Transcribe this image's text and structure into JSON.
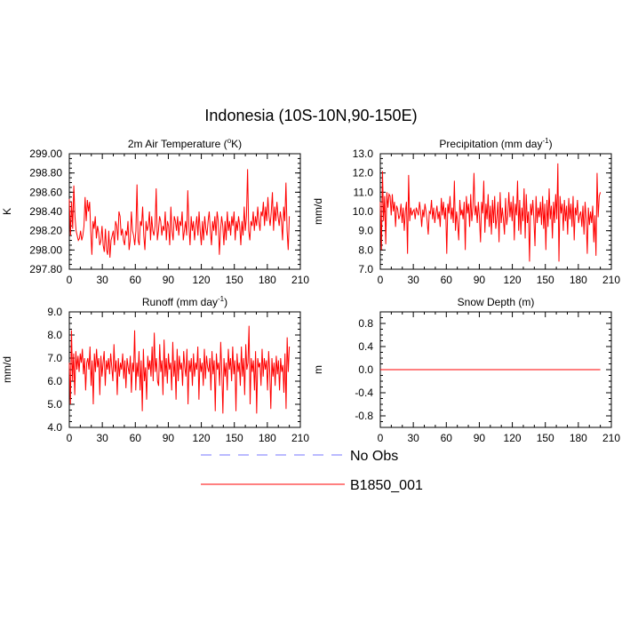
{
  "title": "Indonesia (10S-10N,90-150E)",
  "legend": {
    "position": "bottom-center",
    "entries": [
      {
        "label": "No Obs",
        "color": "#7777ff",
        "dashed": true
      },
      {
        "label": "B1850_001",
        "color": "#ff0000",
        "dashed": false
      }
    ]
  },
  "chart_data": [
    {
      "type": "line",
      "title_main": "2m Air Temperature (",
      "title_sup": "o",
      "title_end": "K)",
      "xlabel": "",
      "ylabel": "K",
      "xlim": [
        0,
        210
      ],
      "ylim": [
        297.8,
        299.0
      ],
      "xticks": [
        "0",
        "30",
        "60",
        "90",
        "120",
        "150",
        "180",
        "210"
      ],
      "yticks": [
        "297.80",
        "298.00",
        "298.20",
        "298.40",
        "298.60",
        "298.80",
        "299.00"
      ],
      "series": [
        {
          "name": "B1850_001",
          "color": "#ff0000",
          "values": [
            298.53,
            298.15,
            298.5,
            298.22,
            298.67,
            298.35,
            298.2,
            298.15,
            298.1,
            298.12,
            298.2,
            298.1,
            298.15,
            298.25,
            298.55,
            298.3,
            298.52,
            298.4,
            298.5,
            298.2,
            297.95,
            298.3,
            298.22,
            298.35,
            298.12,
            298.25,
            298.18,
            298.05,
            298.1,
            298.25,
            298.05,
            297.98,
            298.22,
            298.0,
            297.95,
            298.2,
            297.92,
            298.1,
            298.15,
            298.2,
            298.05,
            298.3,
            298.25,
            298.1,
            298.4,
            298.35,
            298.15,
            298.22,
            298.1,
            298.05,
            298.2,
            298.15,
            298.3,
            298.0,
            298.1,
            298.4,
            298.2,
            298.15,
            298.05,
            298.2,
            298.68,
            298.1,
            298.05,
            298.3,
            298.25,
            298.45,
            298.15,
            298.0,
            298.3,
            298.2,
            298.25,
            298.4,
            298.1,
            298.35,
            298.2,
            298.15,
            298.25,
            298.64,
            298.1,
            298.2,
            298.35,
            298.3,
            298.15,
            298.25,
            298.2,
            298.4,
            298.1,
            298.3,
            298.25,
            298.05,
            298.45,
            298.2,
            298.1,
            298.35,
            298.3,
            298.2,
            298.35,
            298.15,
            298.3,
            298.25,
            298.4,
            298.1,
            298.2,
            298.3,
            298.15,
            298.62,
            298.25,
            298.05,
            298.35,
            298.2,
            298.3,
            298.1,
            298.25,
            298.35,
            298.15,
            298.4,
            298.2,
            298.05,
            298.3,
            298.1,
            298.35,
            298.22,
            298.15,
            298.3,
            298.4,
            298.2,
            298.05,
            298.3,
            298.2,
            298.35,
            298.15,
            298.4,
            298.3,
            297.95,
            298.2,
            298.35,
            298.25,
            298.05,
            298.3,
            298.1,
            298.4,
            298.2,
            298.3,
            298.15,
            298.35,
            298.25,
            298.4,
            298.1,
            298.3,
            298.2,
            298.35,
            298.25,
            298.05,
            298.3,
            298.15,
            298.45,
            298.2,
            298.35,
            298.84,
            298.2,
            298.1,
            298.3,
            298.25,
            298.4,
            298.2,
            298.35,
            298.25,
            298.45,
            298.3,
            298.2,
            298.4,
            298.35,
            298.5,
            298.25,
            298.45,
            298.3,
            298.55,
            298.35,
            298.25,
            298.4,
            298.6,
            298.2,
            298.45,
            298.3,
            298.5,
            298.35,
            298.25,
            298.4,
            298.3,
            298.1,
            298.45,
            298.3,
            298.7,
            298.2,
            298.0,
            298.35
          ]
        }
      ]
    },
    {
      "type": "line",
      "title_main": "Precipitation (mm day",
      "title_sup": "-1",
      "title_end": ")",
      "xlabel": "",
      "ylabel": "mm/d",
      "xlim": [
        0,
        210
      ],
      "ylim": [
        7.0,
        13.0
      ],
      "xticks": [
        "0",
        "30",
        "60",
        "90",
        "120",
        "150",
        "180",
        "210"
      ],
      "yticks": [
        "7.0",
        "8.0",
        "9.0",
        "10.0",
        "11.0",
        "12.0",
        "13.0"
      ],
      "series": [
        {
          "name": "B1850_001",
          "color": "#ff0000",
          "values": [
            10.5,
            8.0,
            12.1,
            9.5,
            10.8,
            8.3,
            11.0,
            10.2,
            10.9,
            10.8,
            9.8,
            10.9,
            10.0,
            10.5,
            9.2,
            10.3,
            10.1,
            9.6,
            9.8,
            10.4,
            9.4,
            10.2,
            9.0,
            10.0,
            10.5,
            7.8,
            11.9,
            9.5,
            10.2,
            9.8,
            10.0,
            10.1,
            9.6,
            10.2,
            10.0,
            9.8,
            10.5,
            10.0,
            9.2,
            10.1,
            9.7,
            10.4,
            10.0,
            9.5,
            8.8,
            10.0,
            9.9,
            10.6,
            9.6,
            10.2,
            9.4,
            9.9,
            10.3,
            9.6,
            10.0,
            9.2,
            10.7,
            9.8,
            10.5,
            9.6,
            10.2,
            7.8,
            10.4,
            9.9,
            10.8,
            9.6,
            10.2,
            9.4,
            11.6,
            9.0,
            10.0,
            9.4,
            8.5,
            10.6,
            9.8,
            10.1,
            9.6,
            10.5,
            8.0,
            10.8,
            9.9,
            10.4,
            9.2,
            10.9,
            9.5,
            10.2,
            12.0,
            9.8,
            10.3,
            9.4,
            10.5,
            9.7,
            8.4,
            10.5,
            9.9,
            11.6,
            8.9,
            10.4,
            9.6,
            10.9,
            9.2,
            10.3,
            8.8,
            10.6,
            9.4,
            10.8,
            9.1,
            9.7,
            10.5,
            8.4,
            11.0,
            9.4,
            10.2,
            9.6,
            8.8,
            10.7,
            9.3,
            9.8,
            11.0,
            9.7,
            10.5,
            9.5,
            10.8,
            8.5,
            10.4,
            9.8,
            11.6,
            9.0,
            10.6,
            8.8,
            10.2,
            9.5,
            11.2,
            8.6,
            10.9,
            9.4,
            10.0,
            7.4,
            10.4,
            9.8,
            10.6,
            9.6,
            8.2,
            10.8,
            9.4,
            10.2,
            9.7,
            10.5,
            9.3,
            10.8,
            9.1,
            10.4,
            8.0,
            10.6,
            9.2,
            11.2,
            9.6,
            10.3,
            8.6,
            10.5,
            9.4,
            10.9,
            9.6,
            12.5,
            7.4,
            10.8,
            9.9,
            10.4,
            9.0,
            10.6,
            9.5,
            10.3,
            8.8,
            10.7,
            9.6,
            10.4,
            9.2,
            10.8,
            8.5,
            10.2,
            9.8,
            10.6,
            9.4,
            9.8,
            10.0,
            9.2,
            10.3,
            8.8,
            10.5,
            9.6,
            7.8,
            10.2,
            9.3,
            10.0,
            9.4,
            10.3,
            8.4,
            9.8,
            7.7,
            12.0,
            9.7,
            10.8,
            11.0
          ]
        }
      ]
    },
    {
      "type": "line",
      "title_main": "Runoff (mm day",
      "title_sup": "-1",
      "title_end": ")",
      "xlabel": "",
      "ylabel": "mm/d",
      "xlim": [
        0,
        210
      ],
      "ylim": [
        4.0,
        9.0
      ],
      "xticks": [
        "0",
        "30",
        "60",
        "90",
        "120",
        "150",
        "180",
        "210"
      ],
      "yticks": [
        "4.0",
        "5.0",
        "6.0",
        "7.0",
        "8.0",
        "9.0"
      ],
      "series": [
        {
          "name": "B1850_001",
          "color": "#ff0000",
          "values": [
            6.8,
            5.0,
            8.2,
            6.0,
            7.2,
            5.4,
            7.3,
            6.5,
            7.1,
            6.4,
            7.2,
            6.8,
            7.4,
            6.3,
            7.0,
            5.6,
            6.8,
            7.0,
            6.5,
            7.5,
            5.8,
            6.9,
            5.0,
            7.2,
            6.4,
            7.4,
            6.6,
            7.0,
            5.4,
            7.1,
            6.2,
            6.8,
            7.3,
            5.8,
            6.9,
            6.5,
            7.0,
            6.3,
            7.2,
            6.6,
            6.0,
            7.6,
            6.4,
            6.9,
            5.4,
            7.0,
            6.2,
            6.8,
            6.5,
            7.2,
            6.1,
            6.9,
            5.7,
            7.0,
            6.6,
            6.3,
            7.1,
            5.5,
            6.8,
            6.4,
            8.2,
            5.6,
            6.8,
            6.2,
            7.3,
            5.6,
            6.9,
            4.7,
            7.4,
            6.0,
            6.6,
            5.2,
            7.1,
            6.5,
            6.9,
            6.2,
            7.5,
            6.0,
            8.1,
            6.4,
            7.0,
            6.0,
            5.8,
            7.6,
            6.4,
            6.9,
            5.4,
            7.8,
            6.2,
            7.0,
            5.9,
            7.2,
            6.5,
            6.8,
            5.6,
            7.7,
            6.2,
            6.9,
            5.2,
            7.4,
            6.0,
            7.1,
            6.5,
            6.8,
            5.8,
            7.3,
            6.6,
            6.2,
            7.4,
            5.0,
            6.9,
            6.4,
            7.0,
            5.8,
            7.2,
            6.2,
            6.8,
            6.5,
            7.5,
            5.2,
            7.0,
            6.4,
            6.8,
            5.8,
            7.4,
            6.1,
            7.1,
            6.6,
            6.4,
            7.0,
            5.6,
            7.3,
            6.3,
            6.9,
            4.7,
            7.2,
            6.5,
            6.8,
            5.8,
            7.7,
            6.4,
            4.6,
            7.0,
            6.2,
            6.8,
            5.6,
            7.4,
            6.5,
            7.0,
            6.0,
            7.5,
            6.3,
            6.9,
            4.7,
            7.2,
            6.4,
            6.8,
            5.8,
            7.5,
            6.2,
            7.0,
            5.4,
            7.6,
            6.5,
            6.8,
            8.4,
            5.0,
            7.0,
            6.4,
            6.9,
            5.6,
            7.3,
            4.6,
            7.0,
            6.6,
            6.8,
            5.8,
            7.4,
            6.2,
            7.0,
            6.5,
            6.9,
            5.6,
            7.3,
            6.4,
            4.8,
            7.0,
            6.2,
            6.8,
            5.8,
            7.1,
            6.3,
            6.9,
            5.6,
            7.0,
            6.4,
            6.7,
            5.5,
            7.2,
            4.8,
            7.9,
            6.4,
            7.5
          ]
        }
      ]
    },
    {
      "type": "line",
      "title_main": "Snow Depth (m)",
      "title_sup": "",
      "title_end": "",
      "xlabel": "",
      "ylabel": "m",
      "xlim": [
        0,
        210
      ],
      "ylim": [
        -1.0,
        1.0
      ],
      "xticks": [
        "0",
        "30",
        "60",
        "90",
        "120",
        "150",
        "180",
        "210"
      ],
      "yticks": [
        "-0.8",
        "-0.4",
        "0.0",
        "0.4",
        "0.8"
      ],
      "ytick_values": [
        -0.8,
        -0.4,
        0.0,
        0.4,
        0.8
      ],
      "series": [
        {
          "name": "B1850_001",
          "color": "#ff0000",
          "constant": 0.0,
          "count": 200
        }
      ]
    }
  ]
}
